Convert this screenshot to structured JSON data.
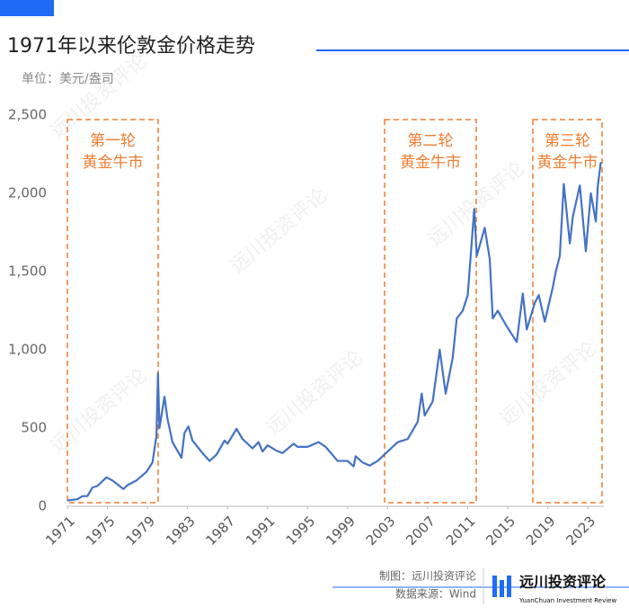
{
  "chart_data": {
    "type": "line",
    "title": "1971年以来伦敦金价格走势",
    "subtitle": "单位：美元/盎司",
    "x": [
      1971.0,
      1972.0,
      1972.5,
      1973.0,
      1973.5,
      1974.0,
      1974.9,
      1975.5,
      1976.6,
      1977.0,
      1977.9,
      1978.9,
      1979.5,
      1979.9,
      1980.05,
      1980.2,
      1980.7,
      1981.0,
      1981.5,
      1982.4,
      1982.7,
      1983.1,
      1983.5,
      1984.5,
      1985.2,
      1985.9,
      1986.7,
      1987.0,
      1987.9,
      1988.5,
      1989.5,
      1990.1,
      1990.5,
      1991.0,
      1991.9,
      1992.5,
      1993.6,
      1994.0,
      1995.0,
      1996.1,
      1996.8,
      1997.6,
      1998.0,
      1999.0,
      1999.6,
      1999.8,
      2000.5,
      2001.2,
      2002.0,
      2003.0,
      2004.0,
      2005.0,
      2006.0,
      2006.4,
      2006.7,
      2007.5,
      2008.2,
      2008.8,
      2009.5,
      2009.9,
      2010.5,
      2011.0,
      2011.65,
      2011.9,
      2012.7,
      2013.2,
      2013.5,
      2014.0,
      2014.9,
      2015.9,
      2016.5,
      2016.9,
      2017.7,
      2018.1,
      2018.7,
      2019.5,
      2019.8,
      2020.2,
      2020.6,
      2021.2,
      2021.5,
      2022.2,
      2022.8,
      2023.3,
      2023.8,
      2024.0,
      2024.3
    ],
    "series": [
      {
        "name": "伦敦金",
        "color": "#4472c4",
        "values": [
          37,
          45,
          65,
          65,
          120,
          130,
          185,
          165,
          110,
          135,
          165,
          220,
          280,
          450,
          850,
          500,
          700,
          560,
          410,
          310,
          470,
          510,
          420,
          340,
          290,
          330,
          420,
          400,
          495,
          430,
          370,
          410,
          350,
          390,
          355,
          340,
          400,
          380,
          380,
          410,
          380,
          320,
          290,
          290,
          255,
          320,
          280,
          260,
          290,
          350,
          410,
          430,
          540,
          720,
          580,
          670,
          1000,
          720,
          950,
          1200,
          1250,
          1350,
          1900,
          1600,
          1780,
          1580,
          1200,
          1250,
          1150,
          1050,
          1360,
          1130,
          1300,
          1350,
          1180,
          1400,
          1500,
          1600,
          2060,
          1680,
          1850,
          2050,
          1630,
          2000,
          1820,
          2050,
          2200
        ]
      }
    ],
    "xlim": [
      1971,
      2024.6
    ],
    "xticks": [
      1971,
      1975,
      1979,
      1983,
      1987,
      1991,
      1995,
      1999,
      2003,
      2007,
      2011,
      2015,
      2019,
      2023
    ],
    "ylim": [
      0,
      2500
    ],
    "yticks": [
      0,
      500,
      {
        "value": 1000,
        "label": "1,000"
      },
      {
        "value": 1500,
        "label": "1,500"
      },
      {
        "value": 2000,
        "label": "2,000"
      },
      {
        "value": 2500,
        "label": "2,500"
      }
    ],
    "annotations": [
      {
        "text": [
          "第一轮",
          "黄金牛市"
        ],
        "color": "#ed7d31"
      },
      {
        "text": [
          "第二轮",
          "黄金牛市"
        ],
        "color": "#ed7d31"
      },
      {
        "text": [
          "第三轮",
          "黄金牛市"
        ],
        "color": "#ed7d31"
      }
    ]
  },
  "footer": {
    "credit": "制图：远川投资评论",
    "source": "数据来源：Wind",
    "logo": "远川投资评论",
    "logo_en": "YuanChuan Investment Review"
  }
}
